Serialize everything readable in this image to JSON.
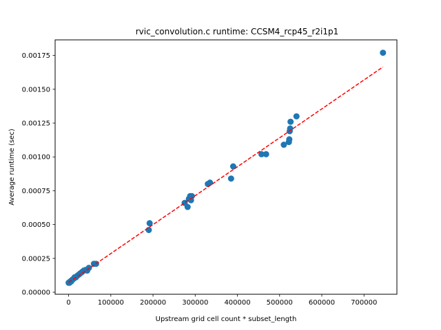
{
  "chart_data": {
    "type": "scatter",
    "title": "rvic_convolution.c runtime: CCSM4_rcp45_r2i1p1",
    "xlabel": "Upstream grid cell count * subset_length",
    "ylabel": "Average runtime (sec)",
    "xlim": [
      -32000,
      778000
    ],
    "ylim": [
      -1.5e-05,
      0.001865
    ],
    "xticks": [
      0,
      100000,
      200000,
      300000,
      400000,
      500000,
      600000,
      700000
    ],
    "xtick_labels": [
      "0",
      "100000",
      "200000",
      "300000",
      "400000",
      "500000",
      "600000",
      "700000"
    ],
    "yticks": [
      0.0,
      0.00025,
      0.0005,
      0.00075,
      0.001,
      0.00125,
      0.0015,
      0.00175
    ],
    "ytick_labels": [
      "0.00000",
      "0.00025",
      "0.00050",
      "0.00075",
      "0.00100",
      "0.00125",
      "0.00150",
      "0.00175"
    ],
    "grid": false,
    "points": {
      "color": "#1f77b4",
      "x": [
        0,
        2000,
        4000,
        6000,
        8000,
        10000,
        12000,
        14000,
        17000,
        20000,
        24000,
        28000,
        32000,
        36000,
        40000,
        44000,
        48000,
        60000,
        65000,
        190000,
        192000,
        275000,
        282000,
        285000,
        288000,
        290000,
        292000,
        330000,
        335000,
        385000,
        390000,
        457000,
        468000,
        510000,
        522000,
        523000,
        524000,
        525000,
        526000,
        540000,
        745000
      ],
      "y": [
        7e-05,
        7e-05,
        8e-05,
        8e-05,
        9e-05,
        9.5e-05,
        0.0001,
        0.00011,
        0.00011,
        0.00012,
        0.00013,
        0.00014,
        0.00015,
        0.00016,
        0.000165,
        0.00016,
        0.00018,
        0.00021,
        0.00021,
        0.00046,
        0.00051,
        0.00066,
        0.00063,
        0.00069,
        0.00071,
        0.00068,
        0.00071,
        0.0008,
        0.00081,
        0.00084,
        0.00093,
        0.00102,
        0.00102,
        0.00109,
        0.00111,
        0.00113,
        0.00119,
        0.00121,
        0.00126,
        0.0013,
        0.00177
      ]
    },
    "fit_line": {
      "color": "#ff0000",
      "style": "dashed",
      "x": [
        0,
        745000
      ],
      "y": [
        7.2e-05,
        0.001665
      ]
    }
  }
}
